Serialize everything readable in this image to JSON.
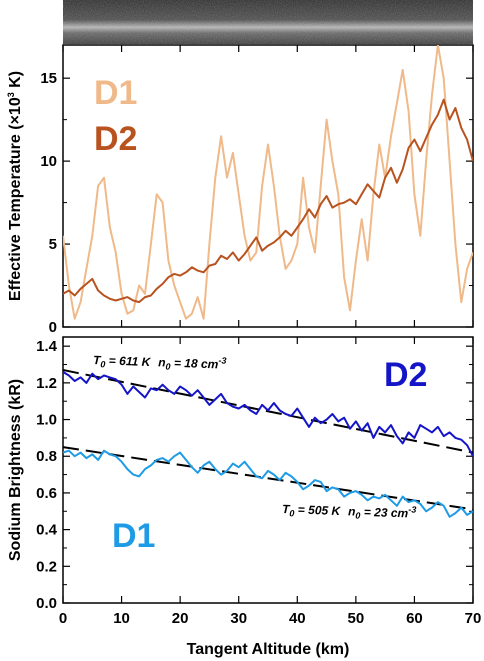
{
  "colors": {
    "d1_top": "#f0b98a",
    "d2_top": "#b8531f",
    "d2_bottom": "#1515c8",
    "d1_bottom": "#1e9be6",
    "fit_line": "#000000"
  },
  "image_strip": {
    "name": "sodium-emission-image"
  },
  "chart_data": [
    {
      "type": "line",
      "ylabel": "Effective Temperature (×10",
      "ylabel_sup": "3",
      "ylabel_unit": " K)",
      "xlim": [
        0,
        70
      ],
      "ylim": [
        0,
        17
      ],
      "yticks": [
        "0",
        "5",
        "10",
        "15"
      ],
      "xticks": [
        "0",
        "10",
        "20",
        "30",
        "40",
        "50",
        "60",
        "70"
      ],
      "series": [
        {
          "name": "D1",
          "color": "#f0b98a",
          "x": [
            0,
            1,
            2,
            3,
            4,
            5,
            6,
            7,
            8,
            9,
            10,
            11,
            12,
            13,
            14,
            15,
            16,
            17,
            18,
            19,
            20,
            21,
            22,
            23,
            24,
            25,
            26,
            27,
            28,
            29,
            30,
            31,
            32,
            33,
            34,
            35,
            36,
            37,
            38,
            39,
            40,
            41,
            42,
            43,
            44,
            45,
            46,
            47,
            48,
            49,
            50,
            51,
            52,
            53,
            54,
            55,
            56,
            57,
            58,
            59,
            60,
            61,
            62,
            63,
            64,
            65,
            66,
            67,
            68,
            69,
            70
          ],
          "y": [
            5.5,
            2.5,
            0.5,
            1.5,
            3.5,
            5.5,
            8.5,
            9.0,
            6.0,
            4.5,
            2.0,
            0.8,
            1.0,
            2.5,
            2.0,
            5.0,
            8.0,
            7.5,
            4.0,
            2.5,
            1.5,
            0.5,
            0.8,
            1.8,
            0.5,
            5.0,
            9.0,
            11.5,
            9.0,
            10.5,
            8.0,
            5.5,
            4.0,
            4.5,
            8.5,
            11.0,
            8.5,
            5.5,
            3.5,
            4.0,
            5.0,
            9.0,
            6.0,
            4.5,
            8.5,
            12.5,
            10.0,
            8.0,
            3.0,
            1.0,
            4.0,
            6.5,
            4.0,
            8.0,
            11.0,
            9.0,
            11.5,
            13.5,
            15.5,
            13.0,
            8.0,
            5.5,
            10.0,
            14.0,
            17.0,
            15.0,
            10.0,
            5.0,
            1.5,
            3.5,
            4.5
          ]
        },
        {
          "name": "D2",
          "color": "#b8531f",
          "x": [
            0,
            1,
            2,
            3,
            4,
            5,
            6,
            7,
            8,
            9,
            10,
            11,
            12,
            13,
            14,
            15,
            16,
            17,
            18,
            19,
            20,
            21,
            22,
            23,
            24,
            25,
            26,
            27,
            28,
            29,
            30,
            31,
            32,
            33,
            34,
            35,
            36,
            37,
            38,
            39,
            40,
            41,
            42,
            43,
            44,
            45,
            46,
            47,
            48,
            49,
            50,
            51,
            52,
            53,
            54,
            55,
            56,
            57,
            58,
            59,
            60,
            61,
            62,
            63,
            64,
            65,
            66,
            67,
            68,
            69,
            70
          ],
          "y": [
            2.0,
            2.2,
            1.9,
            2.3,
            2.6,
            2.9,
            2.2,
            1.9,
            1.7,
            1.6,
            1.7,
            1.8,
            1.6,
            1.5,
            1.8,
            1.9,
            2.3,
            2.6,
            3.0,
            3.2,
            3.1,
            3.3,
            3.6,
            3.4,
            3.3,
            3.7,
            3.8,
            4.3,
            4.1,
            4.5,
            4.0,
            4.4,
            4.9,
            5.4,
            4.6,
            4.9,
            5.1,
            5.4,
            5.8,
            5.5,
            6.0,
            6.5,
            7.1,
            6.6,
            7.4,
            7.9,
            7.2,
            7.4,
            7.5,
            7.7,
            7.4,
            8.0,
            8.6,
            8.2,
            7.8,
            9.0,
            9.6,
            8.7,
            9.5,
            10.8,
            11.3,
            10.6,
            11.4,
            12.2,
            12.8,
            13.7,
            12.5,
            13.2,
            12.0,
            11.3,
            10.0
          ]
        }
      ],
      "legend": [
        {
          "label": "D1",
          "color": "#f0b98a"
        },
        {
          "label": "D2",
          "color": "#b8531f"
        }
      ],
      "legend_position": "top-left"
    },
    {
      "type": "line",
      "xlabel": "Tangent Altitude (km)",
      "ylabel": "Sodium Brightness (kR)",
      "xlim": [
        0,
        70
      ],
      "ylim": [
        0,
        1.45
      ],
      "yticks": [
        "0.0",
        "0.2",
        "0.4",
        "0.6",
        "0.8",
        "1.0",
        "1.2",
        "1.4"
      ],
      "xticks": [
        "0",
        "10",
        "20",
        "30",
        "40",
        "50",
        "60",
        "70"
      ],
      "series": [
        {
          "name": "D2",
          "color": "#1515c8",
          "x": [
            0,
            1,
            2,
            3,
            4,
            5,
            6,
            7,
            8,
            9,
            10,
            11,
            12,
            13,
            14,
            15,
            16,
            17,
            18,
            19,
            20,
            21,
            22,
            23,
            24,
            25,
            26,
            27,
            28,
            29,
            30,
            31,
            32,
            33,
            34,
            35,
            36,
            37,
            38,
            39,
            40,
            41,
            42,
            43,
            44,
            45,
            46,
            47,
            48,
            49,
            50,
            51,
            52,
            53,
            54,
            55,
            56,
            57,
            58,
            59,
            60,
            61,
            62,
            63,
            64,
            65,
            66,
            67,
            68,
            69,
            70
          ],
          "y": [
            1.26,
            1.24,
            1.21,
            1.23,
            1.2,
            1.25,
            1.22,
            1.24,
            1.23,
            1.22,
            1.19,
            1.14,
            1.18,
            1.15,
            1.12,
            1.17,
            1.16,
            1.19,
            1.16,
            1.14,
            1.18,
            1.16,
            1.13,
            1.16,
            1.12,
            1.08,
            1.11,
            1.14,
            1.09,
            1.07,
            1.06,
            1.08,
            1.05,
            1.03,
            1.08,
            1.05,
            1.09,
            1.05,
            1.03,
            1.02,
            1.06,
            1.01,
            0.96,
            1.01,
            0.98,
            1.0,
            1.03,
            0.99,
            1.01,
            0.95,
            0.99,
            0.94,
            0.98,
            0.9,
            0.96,
            0.93,
            0.97,
            0.91,
            0.87,
            0.93,
            0.9,
            0.97,
            0.95,
            0.93,
            0.96,
            0.91,
            0.93,
            0.9,
            0.89,
            0.86,
            0.8
          ]
        },
        {
          "name": "D1",
          "color": "#1e9be6",
          "x": [
            0,
            1,
            2,
            3,
            4,
            5,
            6,
            7,
            8,
            9,
            10,
            11,
            12,
            13,
            14,
            15,
            16,
            17,
            18,
            19,
            20,
            21,
            22,
            23,
            24,
            25,
            26,
            27,
            28,
            29,
            30,
            31,
            32,
            33,
            34,
            35,
            36,
            37,
            38,
            39,
            40,
            41,
            42,
            43,
            44,
            45,
            46,
            47,
            48,
            49,
            50,
            51,
            52,
            53,
            54,
            55,
            56,
            57,
            58,
            59,
            60,
            61,
            62,
            63,
            64,
            65,
            66,
            67,
            68,
            69,
            70
          ],
          "y": [
            0.82,
            0.83,
            0.8,
            0.82,
            0.79,
            0.81,
            0.78,
            0.83,
            0.81,
            0.8,
            0.77,
            0.73,
            0.7,
            0.69,
            0.73,
            0.75,
            0.78,
            0.79,
            0.77,
            0.8,
            0.82,
            0.78,
            0.74,
            0.71,
            0.75,
            0.77,
            0.73,
            0.7,
            0.72,
            0.76,
            0.74,
            0.77,
            0.73,
            0.69,
            0.68,
            0.72,
            0.7,
            0.67,
            0.71,
            0.69,
            0.66,
            0.62,
            0.64,
            0.67,
            0.66,
            0.61,
            0.63,
            0.62,
            0.58,
            0.6,
            0.61,
            0.59,
            0.56,
            0.58,
            0.57,
            0.59,
            0.56,
            0.53,
            0.58,
            0.55,
            0.56,
            0.54,
            0.5,
            0.52,
            0.55,
            0.53,
            0.47,
            0.49,
            0.52,
            0.48,
            0.5
          ]
        }
      ],
      "fit_lines": [
        {
          "x": [
            0,
            70
          ],
          "y": [
            1.27,
            0.82
          ],
          "style": "dashed"
        },
        {
          "x": [
            0,
            70
          ],
          "y": [
            0.85,
            0.51
          ],
          "style": "dashed"
        }
      ],
      "legend": [
        {
          "label": "D2",
          "color": "#1515c8"
        },
        {
          "label": "D1",
          "color": "#1e9be6"
        }
      ],
      "annotations": {
        "d2": {
          "T_sym": "T",
          "T_sub": "0",
          "T_val": " = 611 K",
          "n_sym": "n",
          "n_sub": "0",
          "n_val": " = 18 cm",
          "n_exp": "-3"
        },
        "d1": {
          "T_sym": "T",
          "T_sub": "0",
          "T_val": " = 505 K",
          "n_sym": "n",
          "n_sub": "0",
          "n_val": " = 23 cm",
          "n_exp": "-3"
        }
      }
    }
  ]
}
